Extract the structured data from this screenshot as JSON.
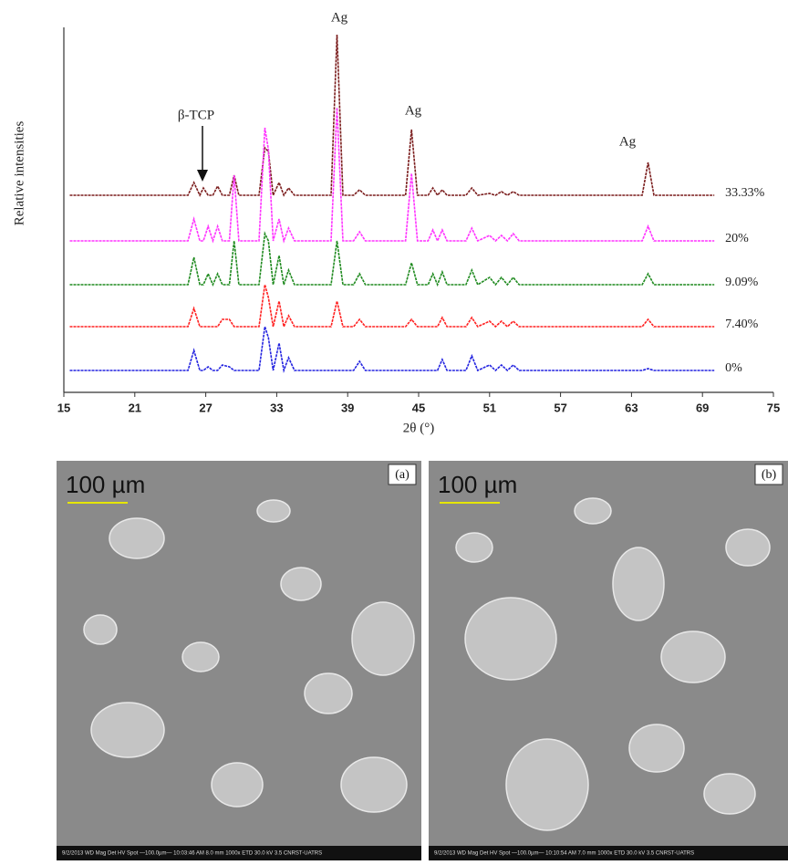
{
  "chart_data": {
    "type": "line",
    "xlabel": "2θ (°)",
    "ylabel": "Relative intensities",
    "annotations": [
      "Ag",
      "Ag",
      "Ag",
      "β-TCP"
    ],
    "x": [
      15.5,
      25.5,
      26,
      26.5,
      26.8,
      27.2,
      27.6,
      28,
      28.4,
      29,
      29.4,
      29.8,
      31.5,
      32,
      32.3,
      32.7,
      33.2,
      33.6,
      34,
      34.5,
      37.6,
      38.1,
      38.6,
      39.5,
      40,
      40.5,
      43.9,
      44.4,
      44.9,
      45.8,
      46.2,
      46.6,
      47,
      47.4,
      49,
      49.5,
      50,
      51,
      51.5,
      52,
      52.5,
      53,
      53.5,
      63.9,
      64.4,
      64.9,
      70
    ],
    "xlim": [
      15,
      75
    ],
    "xticks": [
      15,
      21,
      27,
      33,
      39,
      45,
      51,
      57,
      63,
      69,
      75
    ],
    "ylim": [
      0,
      100
    ],
    "series": [
      {
        "name": "33.33%",
        "color": "#7a1c1c",
        "values": [
          54,
          54,
          57.5,
          54,
          56,
          54,
          54,
          56.5,
          54,
          54,
          59.5,
          54,
          54,
          67,
          66,
          54,
          57.5,
          54,
          56,
          54,
          54,
          98,
          54,
          54,
          55.5,
          54,
          54,
          72,
          54,
          54,
          56,
          54,
          55.5,
          54,
          54,
          56,
          54,
          54.5,
          54,
          55,
          54,
          55,
          54,
          54,
          63,
          54,
          54
        ]
      },
      {
        "name": "20%",
        "color": "#ff33ff",
        "values": [
          41.5,
          41.5,
          47.5,
          41.5,
          41.5,
          45.5,
          41.5,
          45.5,
          41.5,
          41.5,
          59.5,
          41.5,
          41.5,
          72.5,
          66.5,
          41.5,
          47.5,
          41.5,
          45,
          41.5,
          41.5,
          78,
          41.5,
          41.5,
          44,
          41.5,
          41.5,
          60,
          41.5,
          41.5,
          44.5,
          41.5,
          44.5,
          41.5,
          41.5,
          45,
          41.5,
          43,
          41.5,
          43,
          41.5,
          43.5,
          41.5,
          41.5,
          45.5,
          41.5,
          41.5
        ]
      },
      {
        "name": "9.09%",
        "color": "#1f8a1f",
        "values": [
          29.5,
          29.5,
          37,
          29.5,
          29.5,
          32.5,
          29.5,
          32.5,
          29.5,
          29.5,
          41.5,
          29.5,
          29.5,
          43.5,
          41.5,
          29.5,
          37.5,
          29.5,
          33.5,
          29.5,
          29.5,
          41.5,
          29.5,
          29.5,
          32.5,
          29.5,
          29.5,
          35.5,
          29.5,
          29.5,
          32.5,
          29.5,
          33,
          29.5,
          29.5,
          33.5,
          29.5,
          31.5,
          29.5,
          31.5,
          29.5,
          31.5,
          29.5,
          29.5,
          32.5,
          29.5,
          29.5
        ]
      },
      {
        "name": "7.40%",
        "color": "#ff2020",
        "values": [
          18,
          18,
          23,
          18,
          18,
          18,
          18,
          18,
          20,
          20,
          18,
          18,
          18,
          29.5,
          26,
          18,
          25,
          18,
          21,
          18,
          18,
          25,
          18,
          18,
          20,
          18,
          18,
          20,
          18,
          18,
          18,
          18,
          20.5,
          18,
          18,
          20.5,
          18,
          19.5,
          18,
          19.5,
          18,
          19.5,
          18,
          18,
          20,
          18,
          18
        ]
      },
      {
        "name": "0%",
        "color": "#2323e0",
        "values": [
          6,
          6,
          11.5,
          6,
          6,
          7,
          6,
          6,
          7.5,
          7,
          6,
          6,
          6,
          18,
          15,
          6,
          13.5,
          6,
          9.5,
          6,
          6,
          6,
          6,
          6,
          8.5,
          6,
          6,
          6,
          6,
          6,
          6,
          6,
          9,
          6,
          6,
          10,
          6,
          7.5,
          6,
          7.5,
          6,
          7.5,
          6,
          6,
          6.5,
          6,
          6
        ]
      }
    ]
  },
  "panels": [
    {
      "label": "(a)",
      "scale": "100 µm",
      "info": "9/2/2013  WD  Mag  Det  HV  Spot  —100.0µm—  10:03:46 AM 8.0 mm 1000x ETD 30.0 kV 3.5  CNRST-UATRS"
    },
    {
      "label": "(b)",
      "scale": "100 µm",
      "info": "9/2/2013  WD  Mag  Det  HV  Spot  —100.0µm—  10:10:54 AM 7.0 mm 1000x ETD 30.0 kV 3.5  CNRST-UATRS"
    }
  ]
}
